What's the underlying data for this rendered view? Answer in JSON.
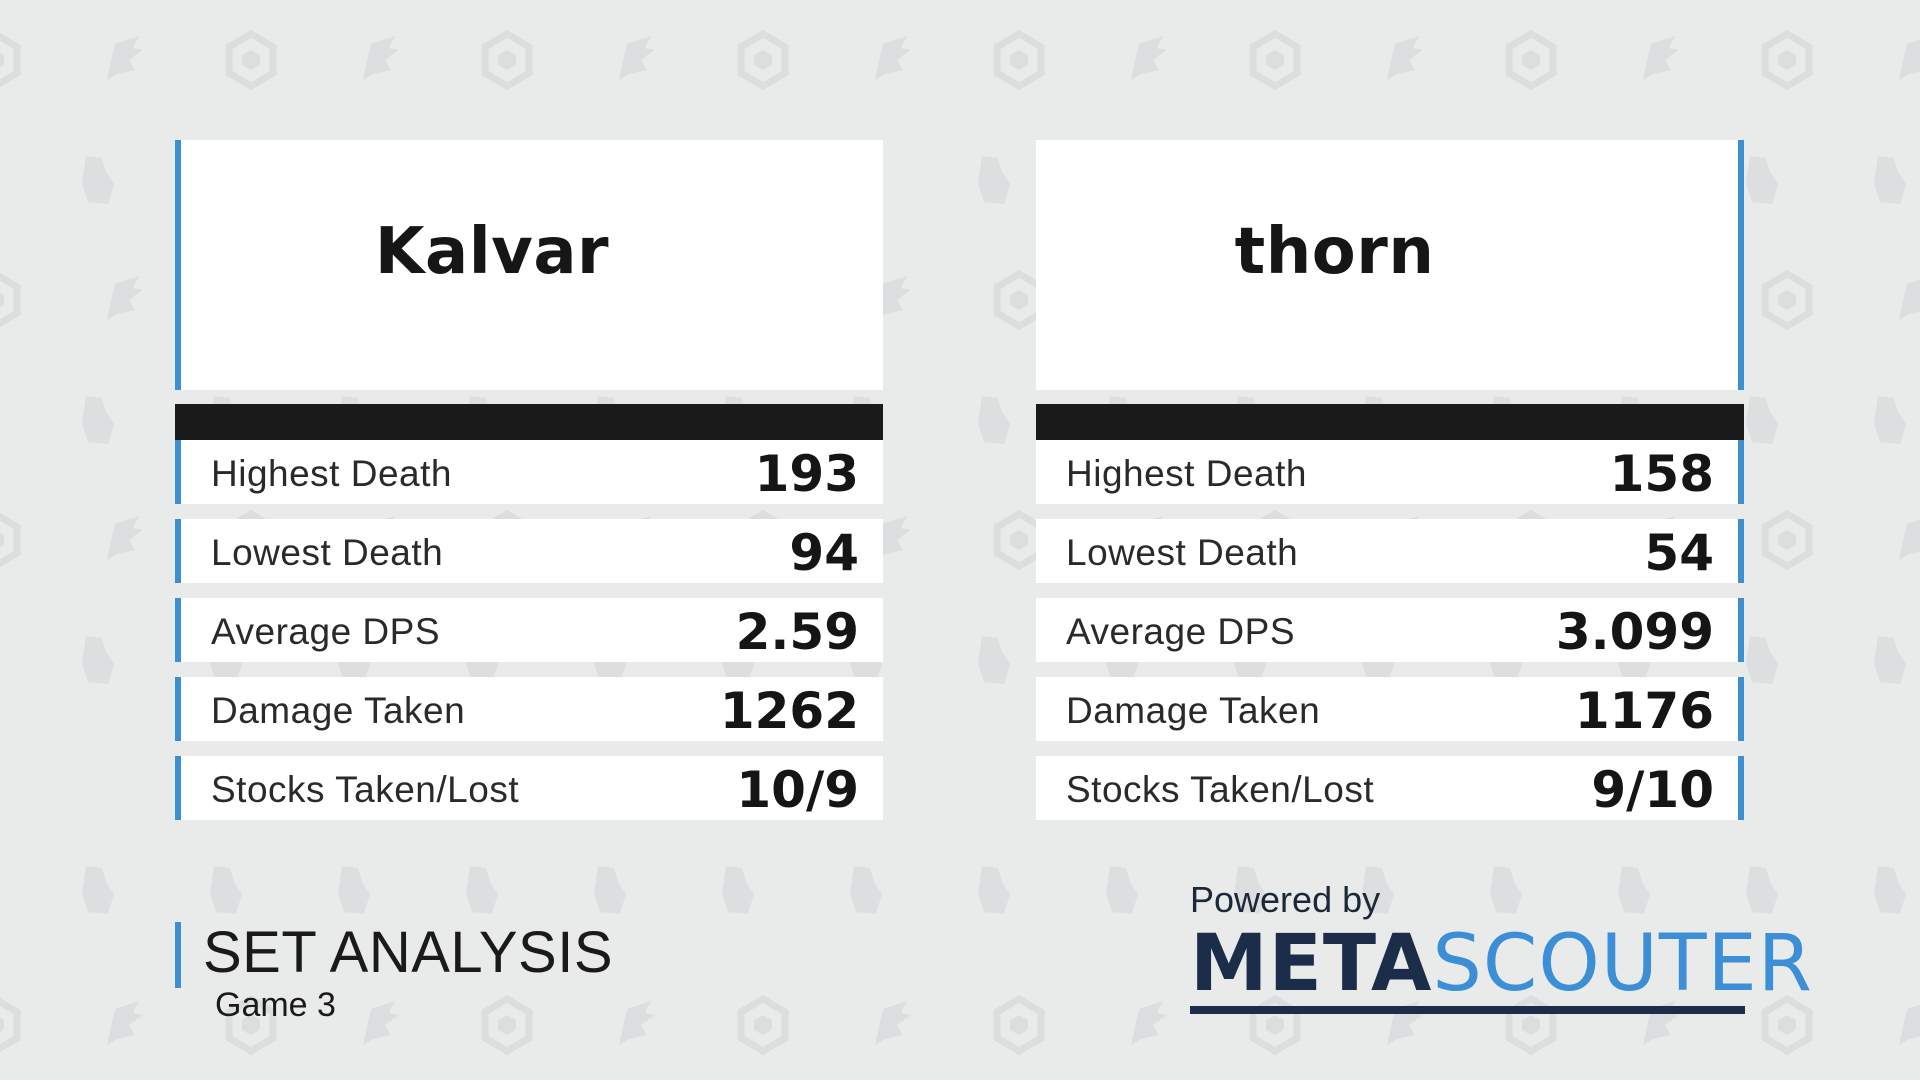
{
  "players": [
    {
      "name": "Kalvar",
      "stats": [
        {
          "label": "Highest Death",
          "value": "193"
        },
        {
          "label": "Lowest Death",
          "value": "94"
        },
        {
          "label": "Average DPS",
          "value": "2.59"
        },
        {
          "label": "Damage Taken",
          "value": "1262"
        },
        {
          "label": "Stocks Taken/Lost",
          "value": "10/9"
        }
      ]
    },
    {
      "name": "thorn",
      "stats": [
        {
          "label": "Highest Death",
          "value": "158"
        },
        {
          "label": "Lowest Death",
          "value": "54"
        },
        {
          "label": "Average DPS",
          "value": "3.099"
        },
        {
          "label": "Damage Taken",
          "value": "1176"
        },
        {
          "label": "Stocks Taken/Lost",
          "value": "9/10"
        }
      ]
    }
  ],
  "footer": {
    "title": "SET ANALYSIS",
    "subtitle": "Game 3"
  },
  "brand": {
    "powered_by": "Powered by",
    "logo_part1": "META",
    "logo_part2": "SCOUTER"
  },
  "colors": {
    "accent": "#3d8fd0",
    "background": "#e9eaea",
    "bar": "#1a1a1a"
  },
  "icons": [
    "hexagon-icon",
    "wing-icon",
    "state-map-icon"
  ]
}
